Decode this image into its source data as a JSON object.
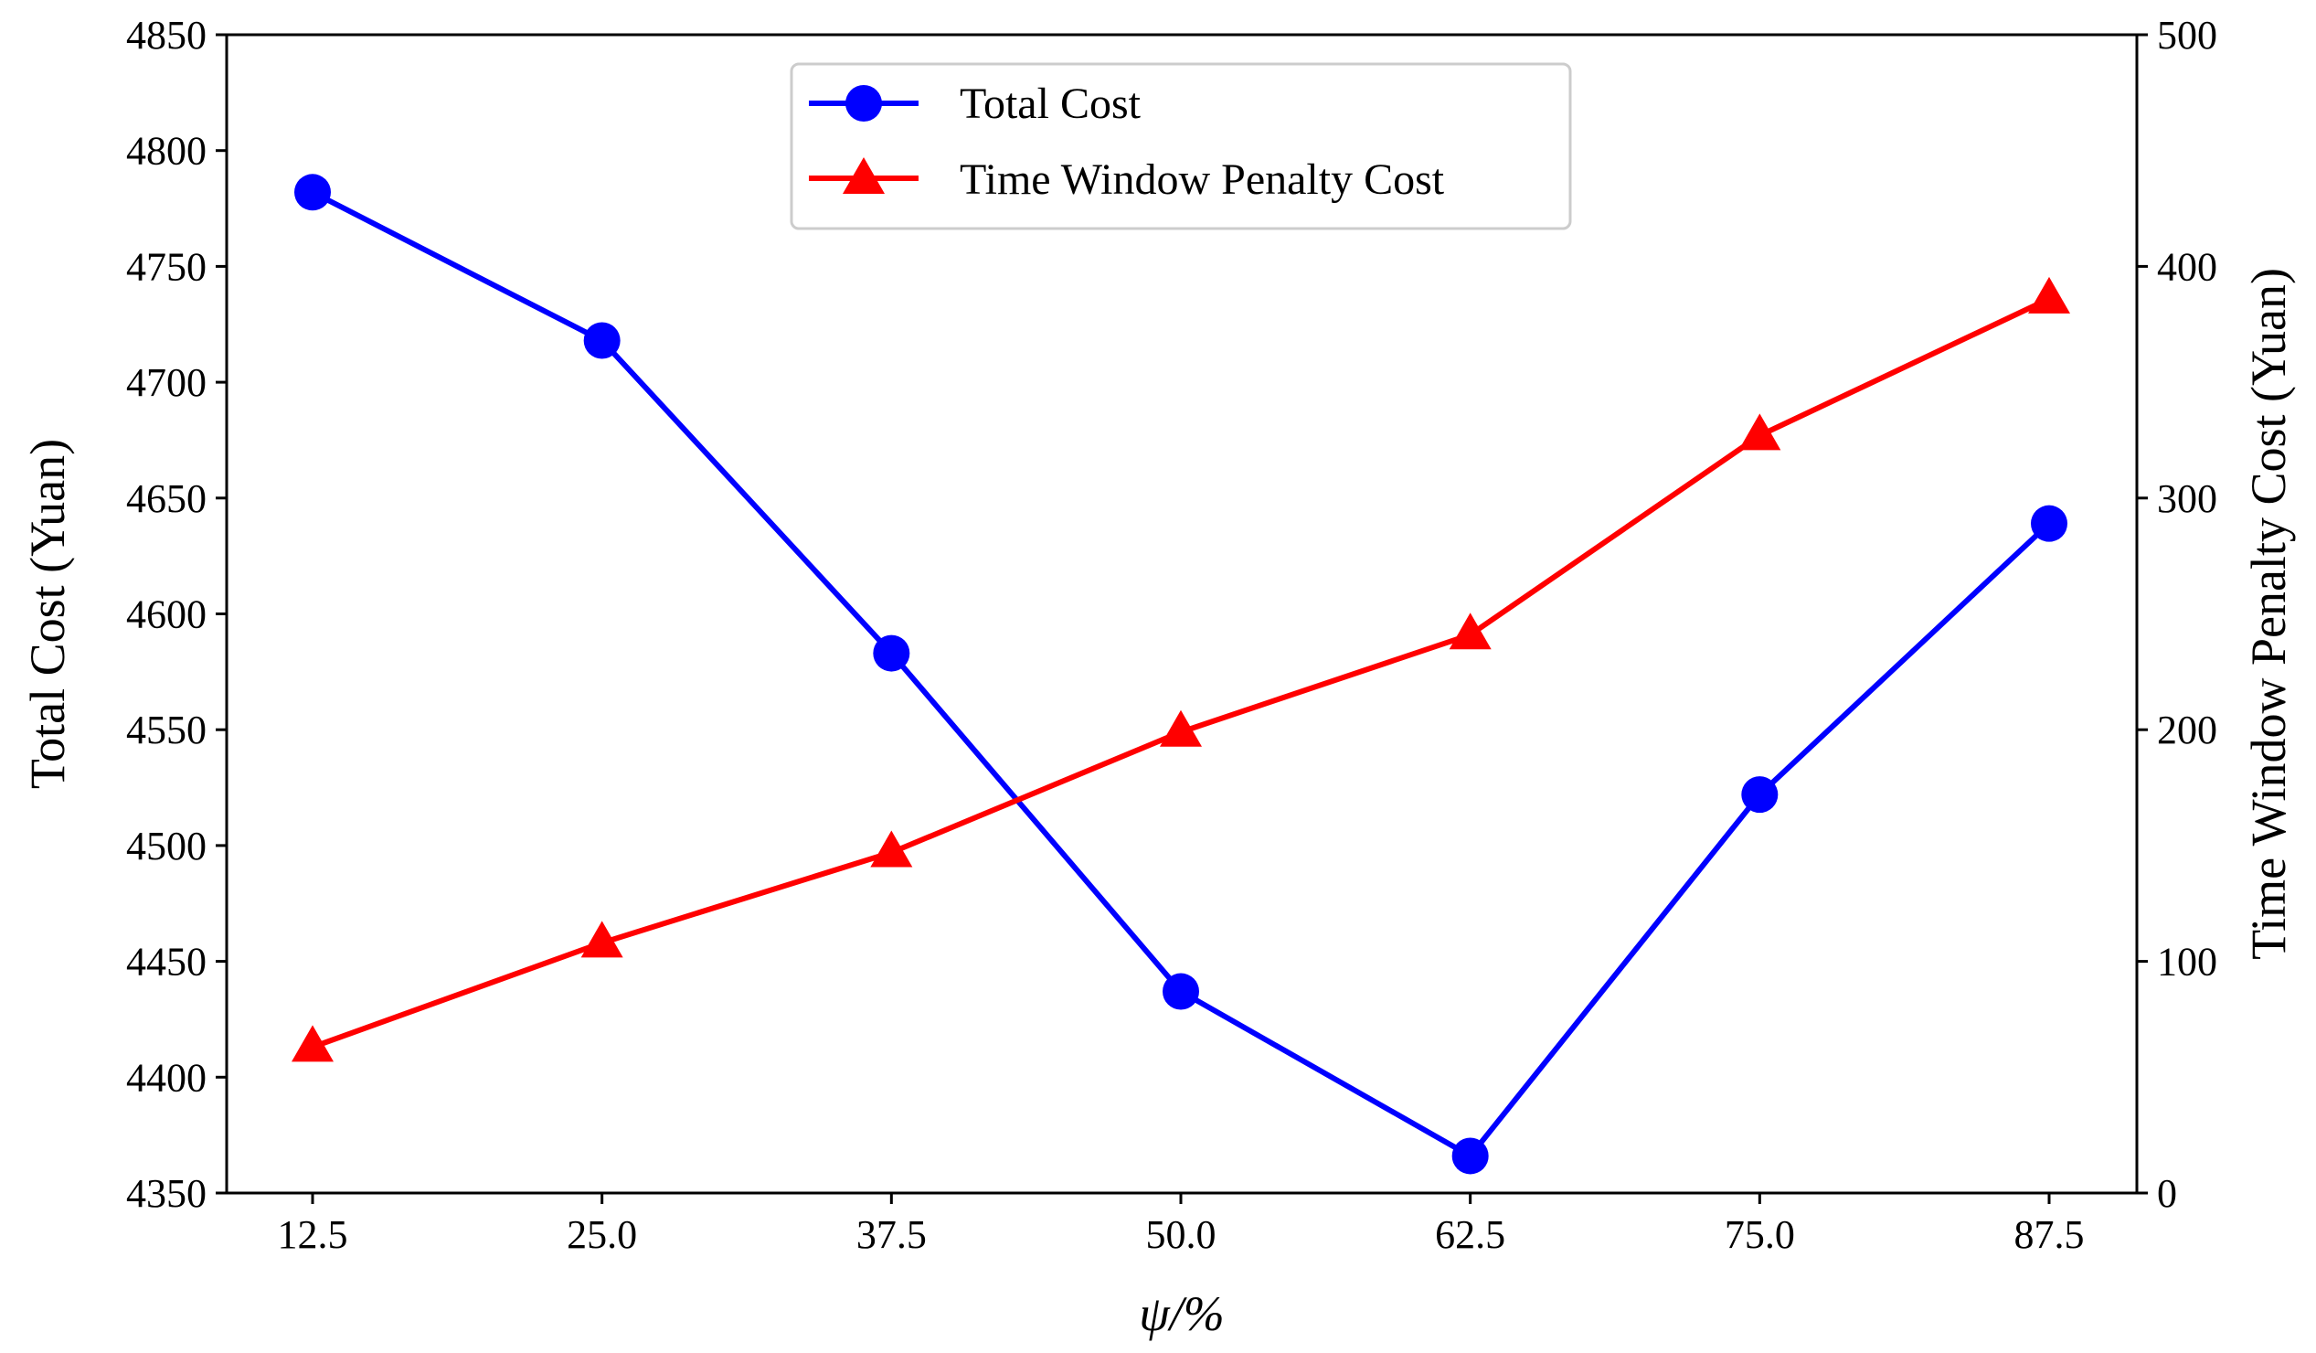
{
  "chart_data": {
    "type": "line",
    "title": "",
    "xlabel": "ψ/%",
    "ylabel_left": "Total Cost (Yuan)",
    "ylabel_right": "Time Window Penalty Cost (Yuan)",
    "x": [
      "12.5",
      "25.0",
      "37.5",
      "50.0",
      "62.5",
      "75.0",
      "87.5"
    ],
    "y_left_ticks": [
      "4350",
      "4400",
      "4450",
      "4500",
      "4550",
      "4600",
      "4650",
      "4700",
      "4750",
      "4800",
      "4850"
    ],
    "y_right_ticks": [
      "0",
      "100",
      "200",
      "300",
      "400",
      "500"
    ],
    "ylim_left": [
      4350,
      4850
    ],
    "ylim_right": [
      0,
      500
    ],
    "legend_position": "upper-center",
    "grid": false,
    "series": [
      {
        "name": "Total Cost",
        "axis": "left",
        "marker": "circle",
        "color": "#0000ff",
        "values": [
          4782,
          4718,
          4583,
          4437,
          4366,
          4522,
          4639
        ]
      },
      {
        "name": "Time Window Penalty Cost",
        "axis": "right",
        "marker": "triangle",
        "color": "#ff0000",
        "values": [
          63,
          108,
          147,
          199,
          241,
          327,
          386
        ]
      }
    ]
  }
}
